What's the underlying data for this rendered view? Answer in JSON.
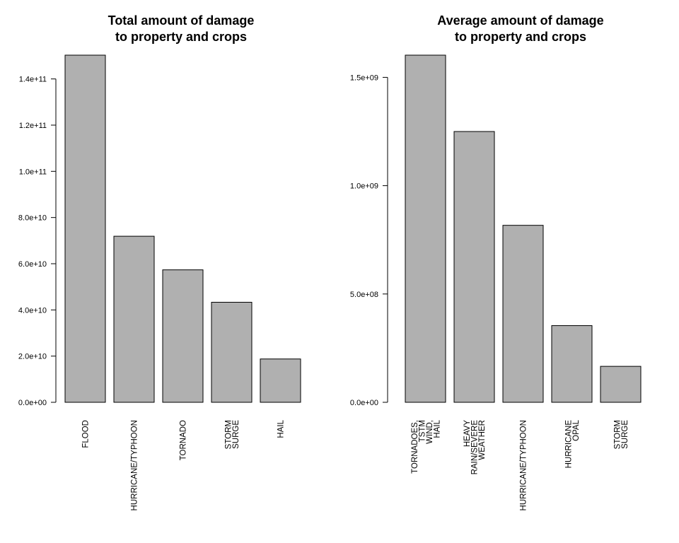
{
  "chart_data": [
    {
      "type": "bar",
      "title_lines": [
        "Total amount of damage",
        "to property and crops"
      ],
      "categories": [
        "FLOOD",
        "HURRICANE/TYPHOON",
        "TORNADO",
        "STORM SURGE",
        "HAIL"
      ],
      "category_label_lines": [
        [
          "FLOOD"
        ],
        [
          "HURRICANE/TYPHOON"
        ],
        [
          "TORNADO"
        ],
        [
          "STORM",
          "SURGE"
        ],
        [
          "HAIL"
        ]
      ],
      "values": [
        150300000000,
        71900000000,
        57350000000,
        43320000000,
        18760000000
      ],
      "yticks": [
        0,
        20000000000,
        40000000000,
        60000000000,
        80000000000,
        100000000000,
        120000000000,
        140000000000
      ],
      "ytick_labels": [
        "0.0e+00",
        "2.0e+10",
        "4.0e+10",
        "6.0e+10",
        "8.0e+10",
        "1.0e+11",
        "1.2e+11",
        "1.4e+11"
      ],
      "ylim": [
        0,
        150300000000
      ],
      "xlabel": "",
      "ylabel": "",
      "bar_color": "#b0b0b0",
      "grid": false,
      "legend": "none"
    },
    {
      "type": "bar",
      "title_lines": [
        "Average amount of damage",
        "to property and crops"
      ],
      "categories": [
        "TORNADOES, TSTM WIND, HAIL",
        "HEAVY RAIN/SEVERE WEATHER",
        "HURRICANE/TYPHOON",
        "HURRICANE OPAL",
        "STORM SURGE"
      ],
      "category_label_lines": [
        [
          "TORNADOES,",
          "TSTM",
          "WIND,",
          "HAIL"
        ],
        [
          "HEAVY",
          "RAIN/SEVERE",
          "WEATHER"
        ],
        [
          "HURRICANE/TYPHOON"
        ],
        [
          "HURRICANE",
          "OPAL"
        ],
        [
          "STORM",
          "SURGE"
        ]
      ],
      "values": [
        1602500000,
        1250000000,
        817000000,
        354000000,
        166000000
      ],
      "yticks": [
        0,
        500000000,
        1000000000,
        1500000000
      ],
      "ytick_labels": [
        "0.0e+00",
        "5.0e+08",
        "1.0e+09",
        "1.5e+09"
      ],
      "ylim": [
        0,
        1602500000
      ],
      "xlabel": "",
      "ylabel": "",
      "bar_color": "#b0b0b0",
      "grid": false,
      "legend": "none"
    }
  ]
}
